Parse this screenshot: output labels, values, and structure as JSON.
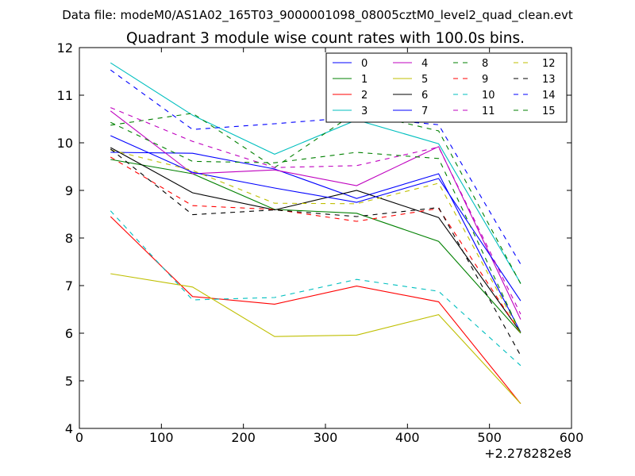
{
  "suptitle": "Data file: modeM0/AS1A02_165T03_9000001098_08005cztM0_level2_quad_clean.evt",
  "chart_data": {
    "type": "line",
    "title": "Quadrant 3 module wise count rates with 100.0s bins.",
    "xlabel": "",
    "ylabel": "",
    "x_offset_label": "+2.278282e8",
    "xlim": [
      0,
      600
    ],
    "ylim": [
      4,
      12
    ],
    "xticks": [
      0,
      100,
      200,
      300,
      400,
      500,
      600
    ],
    "yticks": [
      4,
      5,
      6,
      7,
      8,
      9,
      10,
      11,
      12
    ],
    "legend_position": "top-right",
    "legend_columns": 4,
    "x": [
      38,
      138,
      238,
      338,
      438,
      538
    ],
    "series": [
      {
        "name": "0",
        "color": "#0000ff",
        "dash": false,
        "values": [
          9.8,
          9.78,
          9.45,
          8.83,
          9.35,
          6.02
        ]
      },
      {
        "name": "1",
        "color": "#008000",
        "dash": false,
        "values": [
          9.65,
          9.35,
          8.6,
          8.52,
          7.93,
          6.0
        ]
      },
      {
        "name": "2",
        "color": "#ff0000",
        "dash": false,
        "values": [
          8.45,
          6.77,
          6.61,
          6.99,
          6.66,
          4.52
        ]
      },
      {
        "name": "3",
        "color": "#00bfbf",
        "dash": false,
        "values": [
          11.68,
          10.58,
          9.76,
          10.48,
          9.98,
          7.05
        ]
      },
      {
        "name": "4",
        "color": "#bf00bf",
        "dash": false,
        "values": [
          10.67,
          9.35,
          9.43,
          9.1,
          9.92,
          6.29
        ]
      },
      {
        "name": "5",
        "color": "#bfbf00",
        "dash": false,
        "values": [
          7.25,
          6.97,
          5.93,
          5.96,
          6.39,
          4.52
        ]
      },
      {
        "name": "6",
        "color": "#000000",
        "dash": false,
        "values": [
          9.9,
          8.95,
          8.59,
          9.0,
          8.43,
          6.02
        ]
      },
      {
        "name": "7",
        "color": "#0000ff",
        "dash": false,
        "values": [
          10.15,
          9.38,
          9.05,
          8.75,
          9.25,
          6.68
        ]
      },
      {
        "name": "8",
        "color": "#008000",
        "dash": true,
        "values": [
          10.37,
          10.62,
          9.48,
          10.65,
          10.25,
          7.04
        ]
      },
      {
        "name": "9",
        "color": "#ff0000",
        "dash": true,
        "values": [
          9.7,
          8.68,
          8.6,
          8.35,
          8.62,
          6.0
        ]
      },
      {
        "name": "10",
        "color": "#00bfbf",
        "dash": true,
        "values": [
          8.57,
          6.7,
          6.75,
          7.13,
          6.88,
          5.32
        ]
      },
      {
        "name": "11",
        "color": "#bf00bf",
        "dash": true,
        "values": [
          10.74,
          10.03,
          9.48,
          9.52,
          9.91,
          6.4
        ]
      },
      {
        "name": "12",
        "color": "#bfbf00",
        "dash": true,
        "values": [
          9.85,
          9.42,
          8.73,
          8.72,
          9.15,
          6.0
        ]
      },
      {
        "name": "13",
        "color": "#000000",
        "dash": true,
        "values": [
          9.87,
          8.49,
          8.59,
          8.45,
          8.64,
          5.53
        ]
      },
      {
        "name": "14",
        "color": "#0000ff",
        "dash": true,
        "values": [
          11.53,
          10.28,
          10.4,
          10.54,
          10.38,
          7.45
        ]
      },
      {
        "name": "15",
        "color": "#008000",
        "dash": true,
        "values": [
          10.43,
          9.61,
          9.58,
          9.8,
          9.67,
          6.0
        ]
      }
    ]
  }
}
